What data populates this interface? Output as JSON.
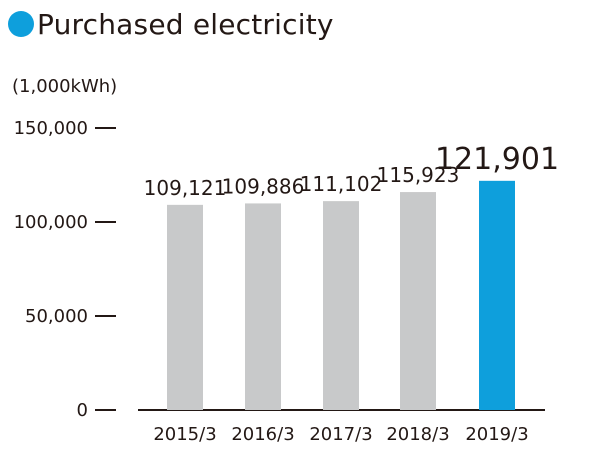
{
  "title": "Purchased electricity",
  "colors": {
    "accent": "#0e9fdc",
    "bar": "#c8c9ca",
    "text": "#231815"
  },
  "chart_data": {
    "type": "bar",
    "title": "Purchased electricity",
    "unit_label": "(1,000kWh)",
    "xlabel": "",
    "ylabel": "",
    "categories": [
      "2015/3",
      "2016/3",
      "2017/3",
      "2018/3",
      "2019/3"
    ],
    "values": [
      109121,
      109886,
      111102,
      115923,
      121901
    ],
    "value_labels": [
      "109,121",
      "109,886",
      "111,102",
      "115,923",
      "121,901"
    ],
    "highlight_index": 4,
    "ylim": [
      0,
      150000
    ],
    "yticks": [
      0,
      50000,
      100000,
      150000
    ],
    "ytick_labels": [
      "0",
      "50,000",
      "100,000",
      "150,000"
    ],
    "grid": false,
    "legend": "none"
  }
}
